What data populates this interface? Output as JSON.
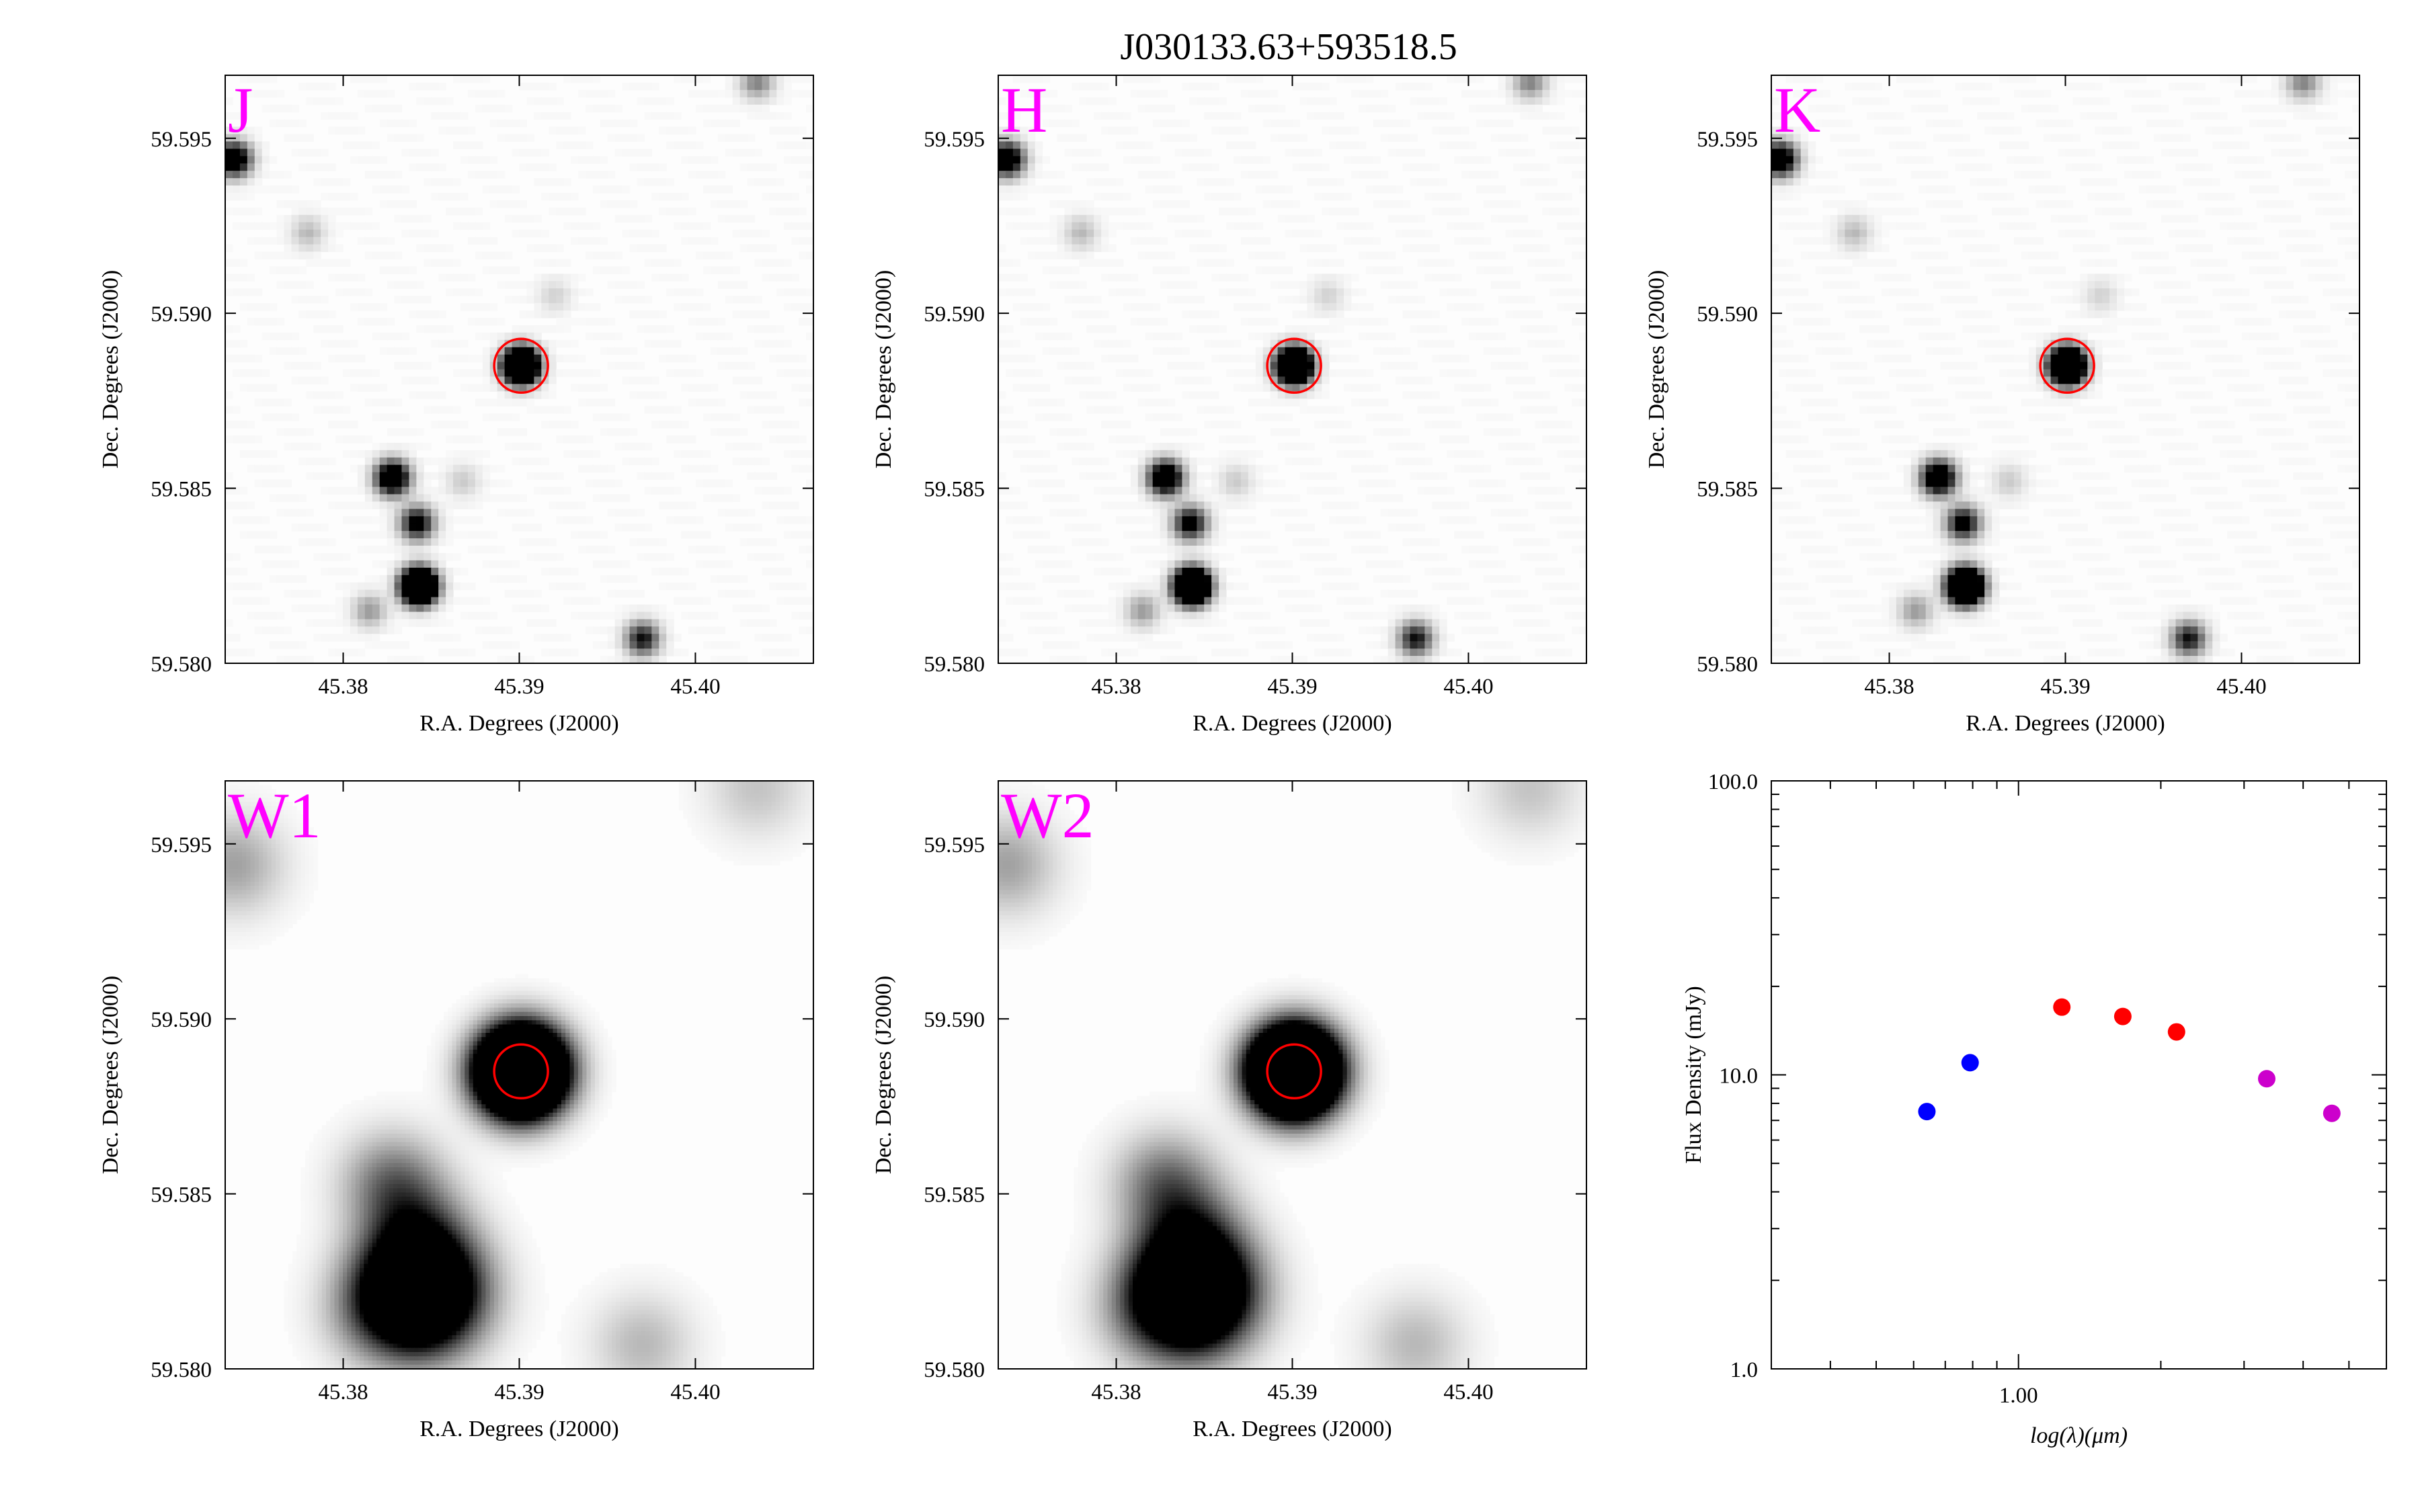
{
  "figure": {
    "title": "J030133.63+593518.5"
  },
  "image_panels": [
    {
      "band": "J",
      "style": "2mass"
    },
    {
      "band": "H",
      "style": "2mass"
    },
    {
      "band": "K",
      "style": "2mass"
    },
    {
      "band": "W1",
      "style": "wise"
    },
    {
      "band": "W2",
      "style": "wise"
    }
  ],
  "image_axes": {
    "xlabel": "R.A. Degrees (J2000)",
    "ylabel": "Dec. Degrees (J2000)",
    "xlim": [
      45.3733,
      45.4067
    ],
    "ylim": [
      59.58,
      59.5968
    ],
    "x_ticks": [
      45.38,
      45.39,
      45.4
    ],
    "x_tick_labels": [
      "45.38",
      "45.39",
      "45.40"
    ],
    "y_ticks": [
      59.58,
      59.585,
      59.59,
      59.595
    ],
    "y_tick_labels": [
      "59.580",
      "59.585",
      "59.590",
      "59.595"
    ],
    "target_ra": 45.3901,
    "target_dec": 59.5885,
    "aperture_color": "#ff0000"
  },
  "sources": [
    {
      "ra": 45.3901,
      "dec": 59.5885,
      "flux": 1.0,
      "wise_flux": 1.0,
      "wise_spread": 1.0
    },
    {
      "ra": 45.3843,
      "dec": 59.5822,
      "flux": 1.0,
      "wise_flux": 0.55,
      "wise_spread": 1.4
    },
    {
      "ra": 45.3828,
      "dec": 59.5853,
      "flux": 0.5,
      "wise_flux": 0.12,
      "wise_spread": 1.2
    },
    {
      "ra": 45.3842,
      "dec": 59.584,
      "flux": 0.35,
      "wise_flux": 0.1,
      "wise_spread": 1.2
    },
    {
      "ra": 45.3738,
      "dec": 59.5944,
      "flux": 0.45,
      "wise_flux": 0.08,
      "wise_spread": 1.2
    },
    {
      "ra": 45.397,
      "dec": 59.5807,
      "flux": 0.3,
      "wise_flux": 0.06,
      "wise_spread": 1.2
    },
    {
      "ra": 45.4035,
      "dec": 59.5966,
      "flux": 0.15,
      "wise_flux": 0.05,
      "wise_spread": 1.2
    },
    {
      "ra": 45.3815,
      "dec": 59.5815,
      "flux": 0.12,
      "wise_flux": 0.05,
      "wise_spread": 1.2
    },
    {
      "ra": 45.378,
      "dec": 59.5923,
      "flux": 0.08,
      "wise_flux": 0.0,
      "wise_spread": 1.0
    },
    {
      "ra": 45.3868,
      "dec": 59.5852,
      "flux": 0.06,
      "wise_flux": 0.0,
      "wise_spread": 1.0
    },
    {
      "ra": 45.392,
      "dec": 59.5905,
      "flux": 0.05,
      "wise_flux": 0.0,
      "wise_spread": 1.0
    }
  ],
  "chart_data": {
    "type": "scatter",
    "xlabel": "log(λ)(μm)",
    "ylabel": "Flux Density (mJy)",
    "x_scale": "log",
    "y_scale": "log",
    "xlim": [
      0.3,
      6.0
    ],
    "ylim": [
      1.0,
      100.0
    ],
    "x_ticks": [
      1.0
    ],
    "x_tick_labels": [
      "1.00"
    ],
    "y_ticks": [
      1.0,
      10.0,
      100.0
    ],
    "y_tick_labels": [
      "1.0",
      "10.0",
      "100.0"
    ],
    "series": [
      {
        "color": "#0000ff",
        "points": [
          {
            "x": 0.64,
            "y": 7.5
          },
          {
            "x": 0.79,
            "y": 11.0
          }
        ]
      },
      {
        "color": "#ff0000",
        "points": [
          {
            "x": 1.235,
            "y": 17.0
          },
          {
            "x": 1.662,
            "y": 15.8
          },
          {
            "x": 2.159,
            "y": 14.0
          }
        ]
      },
      {
        "color": "#cc00cc",
        "points": [
          {
            "x": 3.35,
            "y": 9.7
          },
          {
            "x": 4.6,
            "y": 7.4
          }
        ]
      }
    ]
  }
}
